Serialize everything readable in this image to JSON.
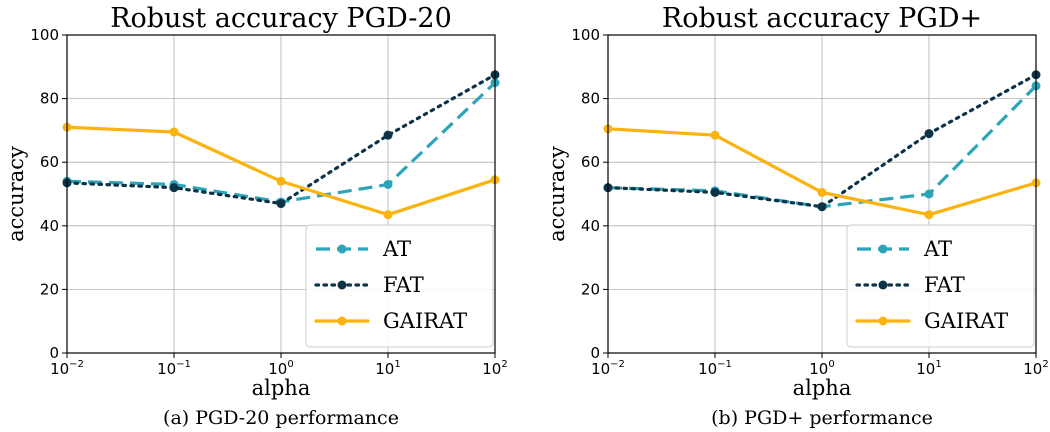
{
  "chart_data": [
    {
      "type": "line",
      "title": "Robust accuracy PGD-20",
      "caption": "(a) PGD-20 performance",
      "xlabel": "alpha",
      "ylabel": "accuracy",
      "xscale": "log",
      "x": [
        0.01,
        0.1,
        1,
        10,
        100
      ],
      "xticks": [
        {
          "base": "10",
          "exp": "−2"
        },
        {
          "base": "10",
          "exp": "−1"
        },
        {
          "base": "10",
          "exp": "0"
        },
        {
          "base": "10",
          "exp": "1"
        },
        {
          "base": "10",
          "exp": "2"
        }
      ],
      "yticks": [
        "0",
        "20",
        "40",
        "60",
        "80",
        "100"
      ],
      "ylim": [
        0,
        100
      ],
      "grid": true,
      "legend_position": "lower-right",
      "series": [
        {
          "name": "AT",
          "values": [
            54,
            53,
            47.5,
            53,
            85
          ],
          "color": "#2ca5b8",
          "style": "dashed"
        },
        {
          "name": "FAT",
          "values": [
            53.5,
            52,
            47,
            68.5,
            87.5
          ],
          "color": "#0d3349",
          "style": "dotted"
        },
        {
          "name": "GAIRAT",
          "values": [
            71,
            69.5,
            54,
            43.5,
            54.5
          ],
          "color": "#fbb30f",
          "style": "solid"
        }
      ]
    },
    {
      "type": "line",
      "title": "Robust accuracy PGD+",
      "caption": "(b) PGD+ performance",
      "xlabel": "alpha",
      "ylabel": "accuracy",
      "xscale": "log",
      "x": [
        0.01,
        0.1,
        1,
        10,
        100
      ],
      "xticks": [
        {
          "base": "10",
          "exp": "−2"
        },
        {
          "base": "10",
          "exp": "−1"
        },
        {
          "base": "10",
          "exp": "0"
        },
        {
          "base": "10",
          "exp": "1"
        },
        {
          "base": "10",
          "exp": "2"
        }
      ],
      "yticks": [
        "0",
        "20",
        "40",
        "60",
        "80",
        "100"
      ],
      "ylim": [
        0,
        100
      ],
      "grid": true,
      "legend_position": "lower-right",
      "series": [
        {
          "name": "AT",
          "values": [
            52,
            51,
            46,
            50,
            84
          ],
          "color": "#2ca5b8",
          "style": "dashed"
        },
        {
          "name": "FAT",
          "values": [
            52,
            50.5,
            46,
            69,
            87.5
          ],
          "color": "#0d3349",
          "style": "dotted"
        },
        {
          "name": "GAIRAT",
          "values": [
            70.5,
            68.5,
            50.5,
            43.5,
            53.5
          ],
          "color": "#fbb30f",
          "style": "solid"
        }
      ]
    }
  ]
}
